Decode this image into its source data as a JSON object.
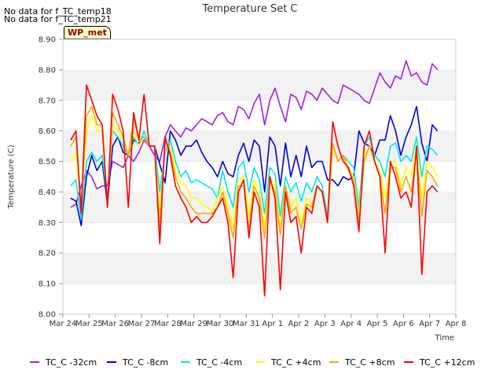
{
  "no_data_notes": [
    "No data for f_TC_temp18",
    "No data for f_TC_temp21"
  ],
  "site_badge": "WP_met",
  "chart_data": {
    "type": "line",
    "title": "Temperature Set C",
    "xlabel": "Time",
    "ylabel": "Temperature (C)",
    "x_tick_labels": [
      "Mar 24",
      "Mar 25",
      "Mar 26",
      "Mar 27",
      "Mar 28",
      "Mar 29",
      "Mar 30",
      "Mar 31",
      "Apr 1",
      "Apr 2",
      "Apr 3",
      "Apr 4",
      "Apr 5",
      "Apr 6",
      "Apr 7",
      "Apr 8"
    ],
    "xlim": [
      0,
      15
    ],
    "ylim": [
      8.0,
      8.9
    ],
    "y_ticks": [
      8.0,
      8.1,
      8.2,
      8.3,
      8.4,
      8.5,
      8.6,
      8.7,
      8.8,
      8.9
    ],
    "y_tick_labels": [
      "8.00",
      "8.10",
      "8.20",
      "8.30",
      "8.40",
      "8.50",
      "8.60",
      "8.70",
      "8.80",
      "8.90"
    ],
    "grid": "horizontal alternating bands",
    "legend_position": "bottom",
    "series": [
      {
        "name": "TC_C -32cm",
        "color": "#a020f0",
        "x": [
          0.3,
          0.5,
          0.7,
          0.9,
          1.1,
          1.3,
          1.5,
          1.7,
          1.9,
          2.1,
          2.3,
          2.5,
          2.7,
          2.9,
          3.1,
          3.3,
          3.5,
          3.7,
          3.9,
          4.1,
          4.3,
          4.5,
          4.7,
          4.9,
          5.1,
          5.3,
          5.5,
          5.7,
          5.9,
          6.1,
          6.3,
          6.5,
          6.7,
          6.9,
          7.1,
          7.3,
          7.5,
          7.7,
          7.9,
          8.1,
          8.3,
          8.5,
          8.7,
          8.9,
          9.1,
          9.3,
          9.5,
          9.7,
          9.9,
          10.1,
          10.3,
          10.5,
          10.7,
          10.9,
          11.1,
          11.3,
          11.5,
          11.7,
          11.9,
          12.1,
          12.3,
          12.5,
          12.7,
          12.9,
          13.1,
          13.3,
          13.5,
          13.7,
          13.9,
          14.1,
          14.3
        ],
        "y": [
          8.35,
          8.36,
          8.42,
          8.47,
          8.45,
          8.41,
          8.42,
          8.42,
          8.5,
          8.49,
          8.48,
          8.52,
          8.5,
          8.53,
          8.57,
          8.55,
          8.52,
          8.5,
          8.58,
          8.62,
          8.6,
          8.58,
          8.61,
          8.6,
          8.62,
          8.64,
          8.63,
          8.62,
          8.65,
          8.66,
          8.63,
          8.62,
          8.68,
          8.67,
          8.64,
          8.69,
          8.72,
          8.62,
          8.7,
          8.74,
          8.68,
          8.63,
          8.72,
          8.71,
          8.67,
          8.73,
          8.72,
          8.7,
          8.74,
          8.72,
          8.7,
          8.69,
          8.75,
          8.74,
          8.73,
          8.72,
          8.7,
          8.69,
          8.74,
          8.79,
          8.76,
          8.74,
          8.78,
          8.77,
          8.83,
          8.78,
          8.79,
          8.76,
          8.75,
          8.82,
          8.8
        ]
      },
      {
        "name": "TC_C -8cm",
        "color": "#0000dd",
        "x": [
          0.3,
          0.5,
          0.7,
          0.9,
          1.1,
          1.3,
          1.5,
          1.7,
          1.9,
          2.1,
          2.3,
          2.5,
          2.7,
          2.9,
          3.1,
          3.3,
          3.5,
          3.7,
          3.9,
          4.1,
          4.3,
          4.5,
          4.7,
          4.9,
          5.1,
          5.3,
          5.5,
          5.7,
          5.9,
          6.1,
          6.3,
          6.5,
          6.7,
          6.9,
          7.1,
          7.3,
          7.5,
          7.7,
          7.9,
          8.1,
          8.3,
          8.5,
          8.7,
          8.9,
          9.1,
          9.3,
          9.5,
          9.7,
          9.9,
          10.1,
          10.3,
          10.5,
          10.7,
          10.9,
          11.1,
          11.3,
          11.5,
          11.7,
          11.9,
          12.1,
          12.3,
          12.5,
          12.7,
          12.9,
          13.1,
          13.3,
          13.5,
          13.7,
          13.9,
          14.1,
          14.3
        ],
        "y": [
          8.38,
          8.37,
          8.29,
          8.45,
          8.52,
          8.47,
          8.5,
          8.36,
          8.55,
          8.58,
          8.53,
          8.52,
          8.57,
          8.56,
          8.58,
          8.55,
          8.55,
          8.49,
          8.43,
          8.6,
          8.57,
          8.52,
          8.55,
          8.55,
          8.57,
          8.53,
          8.5,
          8.48,
          8.45,
          8.5,
          8.46,
          8.45,
          8.52,
          8.56,
          8.5,
          8.57,
          8.55,
          8.4,
          8.58,
          8.55,
          8.42,
          8.56,
          8.45,
          8.52,
          8.45,
          8.55,
          8.48,
          8.5,
          8.5,
          8.44,
          8.44,
          8.42,
          8.45,
          8.44,
          8.45,
          8.6,
          8.56,
          8.55,
          8.52,
          8.57,
          8.57,
          8.65,
          8.6,
          8.52,
          8.58,
          8.62,
          8.68,
          8.56,
          8.5,
          8.62,
          8.6
        ]
      },
      {
        "name": "TC_C -4cm",
        "color": "#00e5ee",
        "x": [
          0.3,
          0.5,
          0.7,
          0.9,
          1.1,
          1.3,
          1.5,
          1.7,
          1.9,
          2.1,
          2.3,
          2.5,
          2.7,
          2.9,
          3.1,
          3.3,
          3.5,
          3.7,
          3.9,
          4.1,
          4.3,
          4.5,
          4.7,
          4.9,
          5.1,
          5.3,
          5.5,
          5.7,
          5.9,
          6.1,
          6.3,
          6.5,
          6.7,
          6.9,
          7.1,
          7.3,
          7.5,
          7.7,
          7.9,
          8.1,
          8.3,
          8.5,
          8.7,
          8.9,
          9.1,
          9.3,
          9.5,
          9.7,
          9.9,
          10.1,
          10.3,
          10.5,
          10.7,
          10.9,
          11.1,
          11.3,
          11.5,
          11.7,
          11.9,
          12.1,
          12.3,
          12.5,
          12.7,
          12.9,
          13.1,
          13.3,
          13.5,
          13.7,
          13.9,
          14.1,
          14.3
        ],
        "y": [
          8.42,
          8.44,
          8.31,
          8.5,
          8.53,
          8.5,
          8.52,
          8.38,
          8.6,
          8.58,
          8.55,
          8.52,
          8.58,
          8.55,
          8.6,
          8.55,
          8.55,
          8.4,
          8.53,
          8.57,
          8.5,
          8.45,
          8.47,
          8.43,
          8.44,
          8.43,
          8.42,
          8.41,
          8.38,
          8.47,
          8.4,
          8.35,
          8.48,
          8.5,
          8.4,
          8.48,
          8.44,
          8.33,
          8.48,
          8.46,
          8.32,
          8.45,
          8.4,
          8.43,
          8.37,
          8.43,
          8.4,
          8.45,
          8.42,
          8.32,
          8.55,
          8.5,
          8.52,
          8.5,
          8.48,
          8.35,
          8.55,
          8.58,
          8.52,
          8.5,
          8.45,
          8.55,
          8.56,
          8.5,
          8.52,
          8.5,
          8.58,
          8.45,
          8.55,
          8.54,
          8.52
        ]
      },
      {
        "name": "TC_C +4cm",
        "color": "#ffff00",
        "x": [
          0.3,
          0.5,
          0.7,
          0.9,
          1.1,
          1.3,
          1.5,
          1.7,
          1.9,
          2.1,
          2.3,
          2.5,
          2.7,
          2.9,
          3.1,
          3.3,
          3.5,
          3.7,
          3.9,
          4.1,
          4.3,
          4.5,
          4.7,
          4.9,
          5.1,
          5.3,
          5.5,
          5.7,
          5.9,
          6.1,
          6.3,
          6.5,
          6.7,
          6.9,
          7.1,
          7.3,
          7.5,
          7.7,
          7.9,
          8.1,
          8.3,
          8.5,
          8.7,
          8.9,
          9.1,
          9.3,
          9.5,
          9.7,
          9.9,
          10.1,
          10.3,
          10.5,
          10.7,
          10.9,
          11.1,
          11.3,
          11.5,
          11.7,
          11.9,
          12.1,
          12.3,
          12.5,
          12.7,
          12.9,
          13.1,
          13.3,
          13.5,
          13.7,
          13.9,
          14.1,
          14.3
        ],
        "y": [
          8.5,
          8.53,
          8.35,
          8.6,
          8.65,
          8.6,
          8.6,
          8.37,
          8.62,
          8.6,
          8.57,
          8.52,
          8.6,
          8.55,
          8.58,
          8.55,
          8.55,
          8.33,
          8.55,
          8.55,
          8.47,
          8.43,
          8.42,
          8.38,
          8.38,
          8.36,
          8.35,
          8.34,
          8.38,
          8.42,
          8.35,
          8.28,
          8.44,
          8.45,
          8.32,
          8.44,
          8.4,
          8.28,
          8.45,
          8.42,
          8.28,
          8.42,
          8.35,
          8.38,
          8.3,
          8.38,
          8.36,
          8.42,
          8.4,
          8.3,
          8.55,
          8.5,
          8.52,
          8.48,
          8.45,
          8.32,
          8.52,
          8.55,
          8.5,
          8.47,
          8.38,
          8.5,
          8.5,
          8.42,
          8.48,
          8.45,
          8.55,
          8.38,
          8.5,
          8.48,
          8.45
        ]
      },
      {
        "name": "TC_C +8cm",
        "color": "#ffa500",
        "x": [
          0.3,
          0.5,
          0.7,
          0.9,
          1.1,
          1.3,
          1.5,
          1.7,
          1.9,
          2.1,
          2.3,
          2.5,
          2.7,
          2.9,
          3.1,
          3.3,
          3.5,
          3.7,
          3.9,
          4.1,
          4.3,
          4.5,
          4.7,
          4.9,
          5.1,
          5.3,
          5.5,
          5.7,
          5.9,
          6.1,
          6.3,
          6.5,
          6.7,
          6.9,
          7.1,
          7.3,
          7.5,
          7.7,
          7.9,
          8.1,
          8.3,
          8.5,
          8.7,
          8.9,
          9.1,
          9.3,
          9.5,
          9.7,
          9.9,
          10.1,
          10.3,
          10.5,
          10.7,
          10.9,
          11.1,
          11.3,
          11.5,
          11.7,
          11.9,
          12.1,
          12.3,
          12.5,
          12.7,
          12.9,
          13.1,
          13.3,
          13.5,
          13.7,
          13.9,
          14.1,
          14.3
        ],
        "y": [
          8.55,
          8.58,
          8.35,
          8.65,
          8.68,
          8.62,
          8.62,
          8.36,
          8.66,
          8.62,
          8.58,
          8.52,
          8.64,
          8.57,
          8.58,
          8.55,
          8.55,
          8.28,
          8.57,
          8.53,
          8.45,
          8.4,
          8.38,
          8.35,
          8.33,
          8.33,
          8.33,
          8.33,
          8.35,
          8.4,
          8.33,
          8.25,
          8.42,
          8.42,
          8.28,
          8.42,
          8.38,
          8.25,
          8.44,
          8.4,
          8.26,
          8.42,
          8.33,
          8.35,
          8.28,
          8.36,
          8.35,
          8.42,
          8.4,
          8.3,
          8.56,
          8.5,
          8.52,
          8.47,
          8.44,
          8.3,
          8.5,
          8.55,
          8.5,
          8.45,
          8.33,
          8.48,
          8.48,
          8.4,
          8.45,
          8.4,
          8.53,
          8.32,
          8.47,
          8.45,
          8.42
        ]
      },
      {
        "name": "TC_C +12cm",
        "color": "#ff0000",
        "x": [
          0.3,
          0.5,
          0.7,
          0.9,
          1.1,
          1.3,
          1.5,
          1.7,
          1.9,
          2.1,
          2.3,
          2.5,
          2.7,
          2.9,
          3.1,
          3.3,
          3.5,
          3.7,
          3.9,
          4.1,
          4.3,
          4.5,
          4.7,
          4.9,
          5.1,
          5.3,
          5.5,
          5.7,
          5.9,
          6.1,
          6.3,
          6.5,
          6.7,
          6.9,
          7.1,
          7.3,
          7.5,
          7.7,
          7.9,
          8.1,
          8.3,
          8.5,
          8.7,
          8.9,
          9.1,
          9.3,
          9.5,
          9.7,
          9.9,
          10.1,
          10.3,
          10.5,
          10.7,
          10.9,
          11.1,
          11.3,
          11.5,
          11.7,
          11.9,
          12.1,
          12.3,
          12.5,
          12.7,
          12.9,
          13.1,
          13.3,
          13.5,
          13.7,
          13.9,
          14.1,
          14.3
        ],
        "y": [
          8.57,
          8.6,
          8.33,
          8.75,
          8.7,
          8.65,
          8.62,
          8.35,
          8.72,
          8.67,
          8.6,
          8.35,
          8.66,
          8.57,
          8.72,
          8.55,
          8.55,
          8.23,
          8.58,
          8.52,
          8.42,
          8.38,
          8.35,
          8.3,
          8.32,
          8.3,
          8.3,
          8.32,
          8.35,
          8.38,
          8.3,
          8.12,
          8.4,
          8.44,
          8.25,
          8.4,
          8.35,
          8.06,
          8.45,
          8.38,
          8.08,
          8.4,
          8.3,
          8.32,
          8.2,
          8.35,
          8.33,
          8.42,
          8.4,
          8.3,
          8.63,
          8.55,
          8.5,
          8.48,
          8.42,
          8.27,
          8.55,
          8.6,
          8.5,
          8.45,
          8.2,
          8.5,
          8.45,
          8.38,
          8.4,
          8.35,
          8.55,
          8.13,
          8.4,
          8.42,
          8.4
        ]
      }
    ]
  }
}
